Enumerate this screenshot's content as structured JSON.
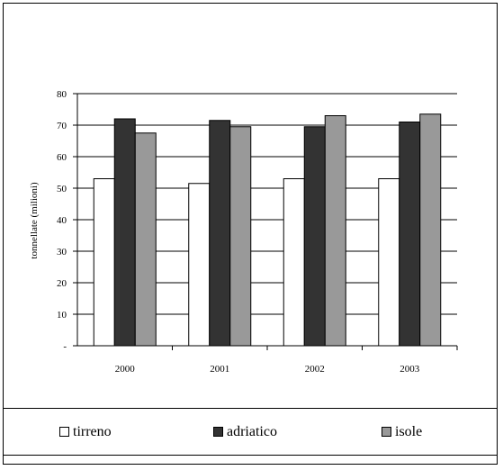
{
  "chart_data": {
    "type": "bar",
    "title": "",
    "xlabel": "",
    "ylabel": "tonnellate (milioni)",
    "categories": [
      "2000",
      "2001",
      "2002",
      "2003"
    ],
    "series": [
      {
        "name": "tirreno",
        "values": [
          53.0,
          51.5,
          53.0,
          53.0
        ],
        "color": "#ffffff"
      },
      {
        "name": "adriatico",
        "values": [
          72.0,
          71.5,
          69.5,
          71.0
        ],
        "color": "#333333"
      },
      {
        "name": "isole",
        "values": [
          67.5,
          69.5,
          73.0,
          73.5
        ],
        "color": "#999999"
      }
    ],
    "ylim": [
      0,
      80
    ],
    "yticks": [
      {
        "value": 0,
        "label": "-"
      },
      {
        "value": 10,
        "label": "10"
      },
      {
        "value": 20,
        "label": "20"
      },
      {
        "value": 30,
        "label": "30"
      },
      {
        "value": 40,
        "label": "40"
      },
      {
        "value": 50,
        "label": "50"
      },
      {
        "value": 60,
        "label": "60"
      },
      {
        "value": 70,
        "label": "70"
      },
      {
        "value": 80,
        "label": "80"
      }
    ],
    "grid": true,
    "legend_position": "bottom"
  }
}
